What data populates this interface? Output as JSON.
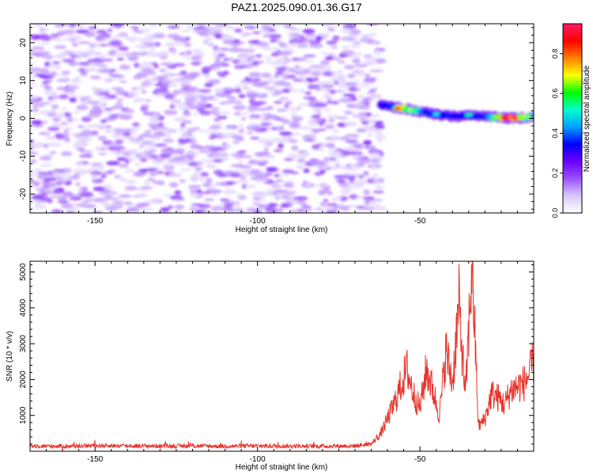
{
  "title": "PAZ1.2025.090.01.36.G17",
  "chart_data": [
    {
      "type": "heatmap",
      "title": "PAZ1.2025.090.01.36.G17",
      "xlabel": "Height of straight line (km)",
      "ylabel": "Frequency (Hz)",
      "xlim": [
        -170,
        -15
      ],
      "ylim": [
        -25,
        25
      ],
      "x_ticks": [
        -150,
        -100,
        -50
      ],
      "y_ticks": [
        -20,
        -10,
        0,
        10,
        20
      ],
      "colorbar": {
        "label": "Normalized spectral amplitude",
        "range": [
          0,
          0.95
        ],
        "ticks": [
          "0.0",
          "0.2",
          "0.4",
          "0.6",
          "0.8"
        ],
        "colormap": [
          "#ffffff",
          "#d9c8ff",
          "#9a50ff",
          "#6a00ff",
          "#0000ff",
          "#00a0ff",
          "#00ffcc",
          "#00ff00",
          "#ffff00",
          "#ff8000",
          "#ff0000",
          "#ff1a66"
        ]
      },
      "noise_region": {
        "x": [
          -170,
          -62
        ],
        "y": [
          -25,
          25
        ],
        "amplitude_range": [
          0,
          0.1
        ]
      },
      "signal_track": {
        "x": [
          -62,
          -60,
          -55,
          -50,
          -45,
          -40,
          -35,
          -30,
          -25,
          -20,
          -15
        ],
        "freq": [
          3.5,
          3.2,
          2.6,
          1.8,
          1.0,
          0.5,
          0.8,
          0.6,
          0.2,
          0.1,
          0.6
        ],
        "amplitude": [
          0.1,
          0.25,
          0.85,
          0.45,
          0.3,
          0.35,
          0.3,
          0.35,
          0.9,
          0.85,
          0.55
        ]
      }
    },
    {
      "type": "line",
      "xlabel": "Height of straight line (km)",
      "ylabel": "SNR (10 * v/v)",
      "xlim": [
        -170,
        -15
      ],
      "ylim": [
        0,
        5300
      ],
      "x_ticks": [
        -150,
        -100,
        -50
      ],
      "y_ticks": [
        1000,
        2000,
        3000,
        4000,
        5000
      ],
      "color": "#e8342c",
      "series": [
        {
          "x": [
            -170,
            -160,
            -150,
            -140,
            -130,
            -120,
            -110,
            -100,
            -90,
            -80,
            -70,
            -65,
            -62,
            -60,
            -58,
            -56,
            -54,
            -52,
            -50,
            -48,
            -46,
            -44,
            -42,
            -40,
            -38,
            -36,
            -34,
            -32,
            -30,
            -28,
            -26,
            -24,
            -22,
            -20,
            -18,
            -16,
            -15
          ],
          "y": [
            150,
            140,
            160,
            150,
            145,
            150,
            140,
            150,
            145,
            140,
            150,
            200,
            500,
            900,
            1300,
            1800,
            2300,
            1600,
            1200,
            2300,
            1700,
            1000,
            2800,
            1900,
            4100,
            1500,
            5300,
            700,
            900,
            1600,
            1500,
            1300,
            1700,
            1800,
            1900,
            2200,
            2600
          ]
        }
      ]
    }
  ]
}
